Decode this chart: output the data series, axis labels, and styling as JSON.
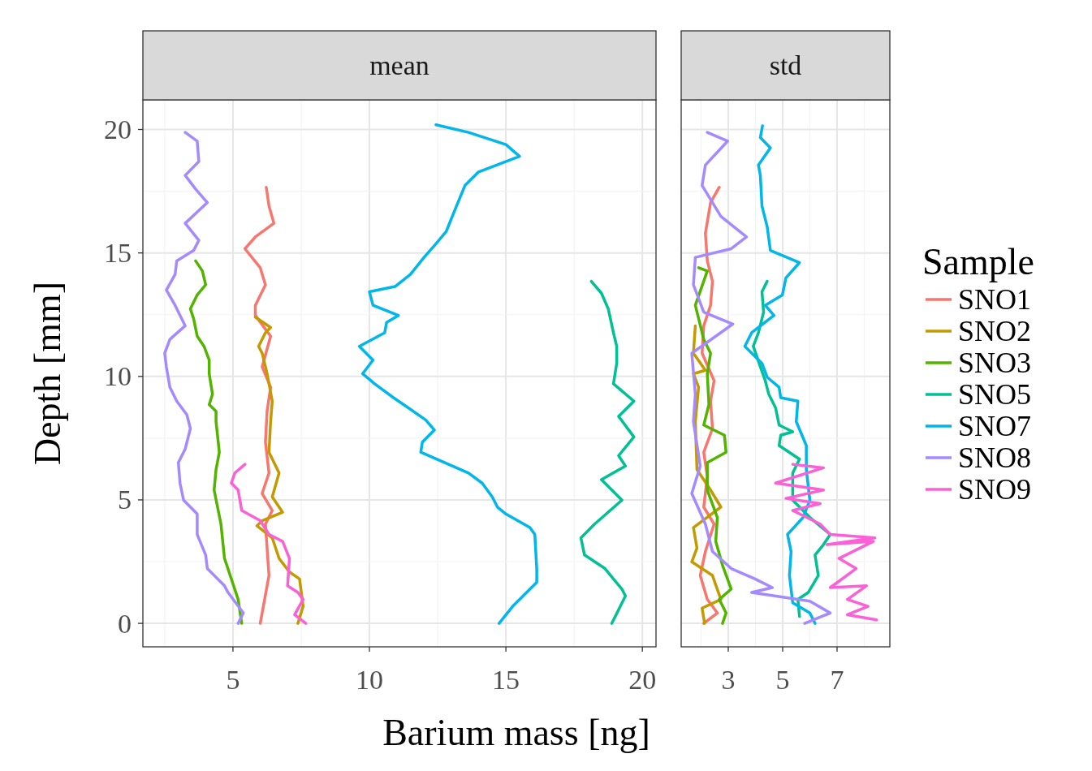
{
  "chart_data": [
    {
      "type": "line",
      "title": "mean",
      "xlabel": "Barium mass [ng]",
      "ylabel": "Depth [mm]",
      "grid": true,
      "xlim": [
        1.7,
        20.5
      ],
      "ylim": [
        -0.95,
        21.2
      ],
      "xticks": [
        {
          "value": 2.5,
          "label": null
        },
        5,
        {
          "value": 7.5,
          "label": null
        },
        10,
        {
          "value": 12.5,
          "label": null
        },
        15,
        {
          "value": 17.5,
          "label": null
        },
        20
      ],
      "yticks": [
        0,
        {
          "value": 2.5,
          "label": null
        },
        5,
        {
          "value": 7.5,
          "label": null
        },
        10,
        {
          "value": 12.5,
          "label": null
        },
        15,
        {
          "value": 17.5,
          "label": null
        },
        20
      ],
      "series": [
        {
          "color": "#f8766d",
          "x": [
            6.0,
            6.32,
            6.19,
            6.44,
            6.07,
            6.32,
            6.19,
            6.25,
            6.38,
            6.07,
            6.38,
            5.82,
            5.82,
            6.19,
            6.0,
            5.44,
            5.82,
            6.5,
            6.32,
            6.22
          ],
          "values": [
            0,
            1.94,
            4.02,
            4.57,
            5.26,
            6.09,
            7.34,
            8.59,
            9.56,
            10.39,
            11.63,
            12.47,
            12.88,
            13.71,
            14.4,
            15.17,
            15.65,
            16.2,
            16.9,
            17.66
          ]
        },
        {
          "color": "#c49a00",
          "x": [
            7.38,
            7.57,
            7.44,
            7.07,
            6.69,
            6.44,
            5.88,
            6.07,
            6.82,
            6.44,
            6.69,
            6.32,
            6.38,
            6.44,
            6.25,
            6.07,
            5.94,
            6.19,
            6.38,
            5.82
          ],
          "values": [
            0,
            0.69,
            1.8,
            2.08,
            2.63,
            3.46,
            3.95,
            4.16,
            4.5,
            5.12,
            6.09,
            6.93,
            8.17,
            9.0,
            10.11,
            10.94,
            11.22,
            11.77,
            11.98,
            12.4
          ]
        },
        {
          "color": "#53b400",
          "x": [
            5.32,
            5.19,
            4.94,
            4.69,
            4.56,
            4.31,
            4.38,
            4.5,
            4.38,
            4.38,
            4.13,
            4.25,
            4.13,
            4.13,
            3.94,
            3.69,
            3.56,
            3.44,
            3.69,
            4.0,
            3.88,
            3.63
          ],
          "values": [
            0,
            0.97,
            1.8,
            2.63,
            4.02,
            5.4,
            6.23,
            6.93,
            8.17,
            8.59,
            8.86,
            9.28,
            10.11,
            10.66,
            11.22,
            11.63,
            12.33,
            12.74,
            13.3,
            13.71,
            14.27,
            14.68
          ]
        },
        {
          "color": "#00c094",
          "x": [
            18.88,
            19.38,
            19.25,
            18.63,
            17.88,
            17.75,
            18.25,
            19.25,
            18.5,
            19.38,
            19.13,
            19.69,
            19.13,
            19.69,
            18.94,
            19.06,
            19.06,
            18.94,
            18.75,
            18.5,
            18.13
          ],
          "values": [
            0,
            1.11,
            1.39,
            2.22,
            2.77,
            3.46,
            4.02,
            4.99,
            5.82,
            6.37,
            6.79,
            7.55,
            8.38,
            9.0,
            9.7,
            10.53,
            11.22,
            11.77,
            12.74,
            13.37,
            13.85
          ]
        },
        {
          "color": "#00b6eb",
          "x": [
            14.75,
            15.25,
            16.13,
            16.13,
            16.06,
            15.88,
            15.0,
            14.69,
            14.5,
            14.13,
            13.63,
            11.88,
            11.94,
            12.38,
            12.06,
            11.25,
            10.88,
            10.19,
            9.75,
            10.13,
            9.63,
            10.56,
            10.63,
            11.06,
            10.13,
            10.0,
            10.94,
            11.5,
            12.0,
            12.38,
            12.81,
            13.19,
            13.5,
            14.0,
            15.5,
            15.0,
            13.63,
            12.44
          ],
          "values": [
            0,
            0.69,
            1.66,
            2.22,
            3.6,
            3.88,
            4.43,
            4.71,
            5.12,
            5.68,
            6.09,
            6.93,
            7.34,
            7.83,
            8.24,
            8.86,
            9.14,
            9.7,
            10.11,
            10.66,
            11.22,
            11.77,
            12.19,
            12.47,
            12.88,
            13.43,
            13.64,
            14.13,
            14.82,
            15.3,
            15.86,
            16.9,
            17.73,
            18.28,
            18.91,
            19.39,
            19.88,
            20.19
          ]
        },
        {
          "color": "#a58aff",
          "x": [
            5.19,
            5.38,
            4.82,
            4.69,
            4.06,
            4.0,
            3.69,
            3.69,
            3.19,
            3.06,
            3.0,
            3.25,
            3.44,
            3.31,
            2.94,
            2.69,
            2.56,
            2.5,
            2.69,
            3.25,
            2.88,
            2.56,
            2.88,
            2.94,
            3.56,
            3.75,
            3.25,
            4.06,
            3.63,
            3.25,
            3.75,
            3.69,
            3.25
          ],
          "values": [
            0,
            0.42,
            1.25,
            1.52,
            2.22,
            2.77,
            3.6,
            4.43,
            4.99,
            5.68,
            6.51,
            7.06,
            7.89,
            8.45,
            9.0,
            9.56,
            10.39,
            10.94,
            11.5,
            12.05,
            12.88,
            13.5,
            14.13,
            14.68,
            15.1,
            15.51,
            16.2,
            17.04,
            17.59,
            18.14,
            18.7,
            19.53,
            19.88
          ]
        },
        {
          "color": "#fb61d7",
          "x": [
            7.67,
            7.26,
            7.57,
            7.38,
            7.0,
            7.07,
            6.82,
            6.32,
            6.0,
            5.32,
            5.19,
            4.94,
            5.07,
            5.44
          ],
          "values": [
            0,
            0.35,
            0.97,
            1.25,
            1.52,
            2.63,
            3.32,
            3.6,
            4.16,
            4.57,
            5.4,
            5.68,
            6.09,
            6.44
          ]
        }
      ]
    },
    {
      "type": "line",
      "title": "std",
      "grid": true,
      "tick_labels": "x",
      "legend": "right",
      "legend_title": "Sample",
      "xlim": [
        1.27,
        8.94
      ],
      "ylim": [
        -0.95,
        21.2
      ],
      "xticks": [
        {
          "value": 2,
          "label": null
        },
        3,
        {
          "value": 4,
          "label": null
        },
        5,
        {
          "value": 6,
          "label": null
        },
        7,
        {
          "value": 8,
          "label": null
        }
      ],
      "yticks": [
        0,
        {
          "value": 2.5,
          "label": null
        },
        5,
        {
          "value": 7.5,
          "label": null
        },
        10,
        {
          "value": 12.5,
          "label": null
        },
        15,
        {
          "value": 17.5,
          "label": null
        },
        20
      ],
      "series": [
        {
          "name": "SNO1",
          "color": "#f8766d",
          "x": [
            2.1,
            2.6,
            2.23,
            1.97,
            2.16,
            2.48,
            2.1,
            2.23,
            2.1,
            2.42,
            2.35,
            2.48,
            2.04,
            2.1,
            2.35,
            2.42,
            2.23,
            2.16,
            2.35,
            2.67
          ],
          "values": [
            0,
            0.42,
            0.97,
            1.94,
            2.91,
            4.02,
            4.71,
            5.96,
            6.93,
            7.89,
            9.0,
            9.83,
            10.94,
            12.05,
            12.88,
            13.85,
            14.68,
            15.79,
            17.04,
            17.66
          ]
        },
        {
          "name": "SNO2",
          "color": "#c49a00",
          "x": [
            2.13,
            2.04,
            2.73,
            2.42,
            1.66,
            1.85,
            1.72,
            2.73,
            2.35,
            1.85,
            1.79,
            1.91,
            1.72,
            2.16,
            1.72,
            1.79
          ],
          "values": [
            0,
            0.62,
            0.97,
            1.94,
            2.49,
            3.05,
            3.88,
            4.71,
            5.4,
            6.23,
            8.17,
            9.56,
            10.11,
            10.25,
            10.94,
            12.05
          ]
        },
        {
          "name": "SNO3",
          "color": "#53b400",
          "x": [
            2.79,
            2.92,
            2.67,
            3.11,
            2.79,
            2.54,
            2.6,
            2.23,
            2.23,
            2.92,
            2.86,
            2.1,
            2.29,
            2.23,
            2.35,
            2.1,
            1.79,
            2.23,
            1.91
          ],
          "values": [
            0,
            0.42,
            0.97,
            1.39,
            2.35,
            3.32,
            4.29,
            5.4,
            6.51,
            6.93,
            7.62,
            8.03,
            8.86,
            10.11,
            10.94,
            11.5,
            12.88,
            14.27,
            14.4
          ]
        },
        {
          "name": "SNO5",
          "color": "#00c094",
          "x": [
            5.62,
            5.56,
            5.94,
            6.31,
            6.19,
            6.5,
            6.75,
            6.0,
            5.37,
            5.37,
            5.62,
            4.87,
            4.93,
            5.37,
            4.87,
            4.74,
            4.49,
            4.36,
            4.18,
            3.92,
            4.11,
            4.3,
            4.24,
            4.43
          ],
          "values": [
            0.28,
            0.97,
            1.25,
            1.94,
            2.77,
            3.19,
            3.6,
            4.29,
            4.99,
            6.09,
            6.65,
            7.2,
            7.62,
            7.76,
            8.03,
            8.73,
            9.28,
            9.83,
            10.39,
            11.22,
            11.77,
            12.6,
            13.43,
            13.85
          ]
        },
        {
          "name": "SNO7",
          "color": "#00b6eb",
          "x": [
            6.19,
            6.0,
            5.37,
            5.25,
            5.31,
            5.18,
            5.75,
            6.0,
            5.87,
            5.87,
            5.5,
            5.56,
            4.93,
            4.87,
            4.43,
            4.24,
            3.61,
            3.86,
            4.68,
            4.36,
            4.99,
            5.12,
            5.62,
            4.55,
            4.43,
            4.24,
            4.18,
            4.11,
            4.55,
            4.18,
            4.26
          ],
          "values": [
            0,
            0.42,
            0.83,
            1.94,
            2.91,
            3.6,
            4.29,
            4.99,
            6.23,
            7.2,
            8.17,
            9.0,
            9.14,
            9.56,
            9.97,
            10.53,
            11.22,
            11.77,
            12.47,
            12.88,
            13.3,
            13.99,
            14.61,
            15.1,
            16.07,
            16.9,
            18.14,
            18.56,
            19.25,
            19.67,
            20.15
          ]
        },
        {
          "name": "SNO8",
          "color": "#a58aff",
          "x": [
            5.81,
            6.75,
            6.0,
            3.86,
            4.62,
            3.99,
            3.11,
            2.42,
            2.16,
            1.66,
            1.97,
            1.72,
            1.79,
            1.66,
            3.17,
            2.1,
            1.72,
            1.79,
            3.11,
            3.67,
            2.73,
            2.04,
            2.16,
            2.98,
            2.23
          ],
          "values": [
            0,
            0.42,
            0.9,
            1.25,
            1.45,
            1.8,
            2.22,
            2.91,
            4.02,
            5.26,
            6.37,
            8.17,
            9.28,
            10.94,
            12.12,
            12.6,
            13.71,
            14.82,
            15.17,
            15.65,
            16.48,
            17.73,
            18.56,
            19.53,
            19.88
          ]
        },
        {
          "name": "SNO9",
          "color": "#fb61d7",
          "x": [
            8.45,
            7.38,
            8.14,
            7.38,
            8.08,
            6.75,
            7.7,
            7.07,
            8.33,
            6.63,
            8.39,
            6.75,
            6.38,
            5.37,
            6.38,
            5.12,
            6.5,
            4.74,
            6.5,
            5.37
          ],
          "values": [
            0.14,
            0.35,
            0.69,
            0.97,
            1.52,
            1.45,
            2.22,
            2.63,
            3.32,
            3.19,
            3.46,
            3.6,
            4.02,
            4.57,
            4.85,
            5.06,
            5.4,
            5.68,
            6.3,
            6.44
          ]
        }
      ]
    }
  ]
}
